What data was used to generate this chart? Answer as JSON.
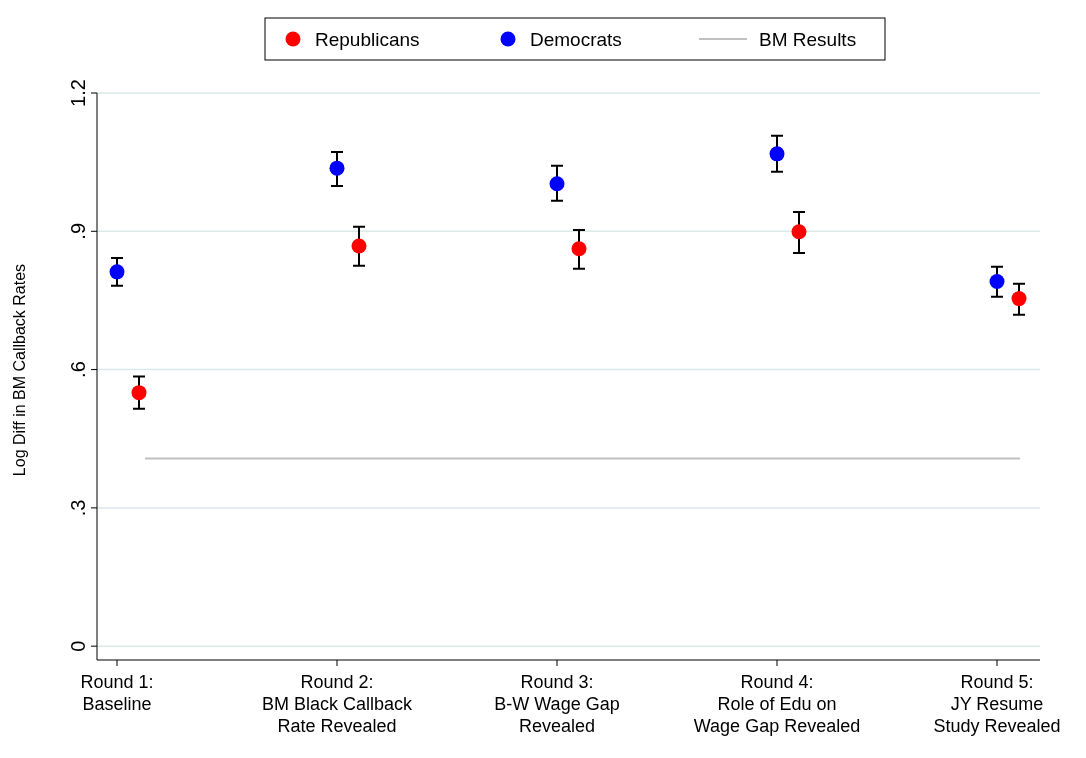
{
  "chart_data": {
    "type": "scatter",
    "ylabel": "Log Diff in BM Callback Rates",
    "categories": [
      "Round 1:\nBaseline",
      "Round 2:\nBM Black Callback\nRate Revealed",
      "Round 3:\nB-W Wage Gap\nRevealed",
      "Round 4:\nRole of Edu on\nWage Gap Revealed",
      "Round 5:\nJY Resume\nStudy Revealed"
    ],
    "series": [
      {
        "name": "Republicans",
        "color": "#ff0000",
        "values": [
          0.55,
          0.868,
          0.862,
          0.899,
          0.754
        ],
        "errors": [
          [
            0.515,
            0.585
          ],
          [
            0.825,
            0.91
          ],
          [
            0.819,
            0.903
          ],
          [
            0.853,
            0.942
          ],
          [
            0.719,
            0.786
          ]
        ]
      },
      {
        "name": "Democrats",
        "color": "#0000ff",
        "values": [
          0.812,
          1.037,
          1.003,
          1.068,
          0.791
        ],
        "errors": [
          [
            0.782,
            0.842
          ],
          [
            0.998,
            1.072
          ],
          [
            0.966,
            1.042
          ],
          [
            1.029,
            1.107
          ],
          [
            0.758,
            0.823
          ]
        ]
      }
    ],
    "ref_lines": [
      {
        "axis": "y",
        "value": 0.407,
        "label": "BM Results",
        "color": "#c0c0c0"
      }
    ],
    "ylim": [
      -0.03,
      1.2
    ],
    "yticks": [
      0,
      {
        "value": 0.3,
        "label": ".3"
      },
      {
        "value": 0.6,
        "label": ".6"
      },
      {
        "value": 0.9,
        "label": ".9"
      },
      1.2
    ],
    "grid": "y",
    "legend": "top",
    "marker": "circle"
  }
}
